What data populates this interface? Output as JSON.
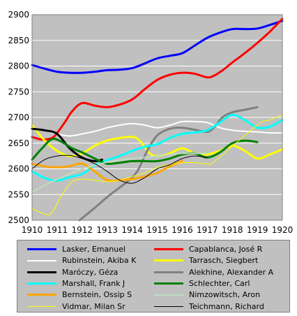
{
  "chart_data": {
    "type": "line",
    "title": "",
    "xlabel": "",
    "ylabel": "",
    "xlim": [
      1910,
      1920
    ],
    "ylim": [
      2500,
      2900
    ],
    "x_ticks": [
      "1910",
      "1911",
      "1912",
      "1913",
      "1914",
      "1915",
      "1916",
      "1917",
      "1918",
      "1919",
      "1920"
    ],
    "y_ticks": [
      "2500",
      "2550",
      "2600",
      "2650",
      "2700",
      "2750",
      "2800",
      "2850",
      "2900"
    ],
    "grid": "horizontal",
    "plot_background": "#c0c0c0",
    "legend_position": "bottom",
    "series": [
      {
        "name": "Lasker, Emanuel",
        "color": "#0000ff",
        "width": 3,
        "points": [
          [
            1910,
            2802
          ],
          [
            1910.5,
            2795
          ],
          [
            1911,
            2789
          ],
          [
            1911.5,
            2787
          ],
          [
            1912,
            2787
          ],
          [
            1912.5,
            2789
          ],
          [
            1913,
            2792
          ],
          [
            1913.5,
            2793
          ],
          [
            1914,
            2796
          ],
          [
            1914.5,
            2805
          ],
          [
            1915,
            2815
          ],
          [
            1915.5,
            2820
          ],
          [
            1916,
            2825
          ],
          [
            1916.5,
            2840
          ],
          [
            1917,
            2855
          ],
          [
            1917.5,
            2865
          ],
          [
            1918,
            2872
          ],
          [
            1918.5,
            2872
          ],
          [
            1919,
            2873
          ],
          [
            1919.5,
            2880
          ],
          [
            1920,
            2888
          ]
        ]
      },
      {
        "name": "Capablanca, José R",
        "color": "#ff0000",
        "width": 3,
        "points": [
          [
            1910,
            2662
          ],
          [
            1910.4,
            2657
          ],
          [
            1910.8,
            2660
          ],
          [
            1911,
            2670
          ],
          [
            1911.3,
            2690
          ],
          [
            1911.6,
            2712
          ],
          [
            1912,
            2728
          ],
          [
            1912.5,
            2723
          ],
          [
            1913,
            2720
          ],
          [
            1913.5,
            2725
          ],
          [
            1914,
            2735
          ],
          [
            1914.5,
            2755
          ],
          [
            1915,
            2773
          ],
          [
            1915.5,
            2783
          ],
          [
            1916,
            2787
          ],
          [
            1916.5,
            2785
          ],
          [
            1917,
            2778
          ],
          [
            1917.3,
            2782
          ],
          [
            1917.7,
            2795
          ],
          [
            1918,
            2807
          ],
          [
            1918.5,
            2825
          ],
          [
            1919,
            2845
          ],
          [
            1919.5,
            2867
          ],
          [
            1920,
            2892
          ]
        ]
      },
      {
        "name": "Rubinstein, Akiba K",
        "color": "#ffffff",
        "width": 2,
        "points": [
          [
            1910,
            2680
          ],
          [
            1910.5,
            2675
          ],
          [
            1911,
            2668
          ],
          [
            1911.5,
            2664
          ],
          [
            1912,
            2668
          ],
          [
            1912.5,
            2673
          ],
          [
            1913,
            2680
          ],
          [
            1913.5,
            2685
          ],
          [
            1914,
            2688
          ],
          [
            1914.5,
            2685
          ],
          [
            1915,
            2680
          ],
          [
            1915.5,
            2685
          ],
          [
            1916,
            2692
          ],
          [
            1916.5,
            2692
          ],
          [
            1917,
            2690
          ],
          [
            1917.5,
            2680
          ],
          [
            1918,
            2675
          ],
          [
            1918.5,
            2673
          ],
          [
            1919,
            2672
          ],
          [
            1919.5,
            2670
          ],
          [
            1920,
            2670
          ]
        ]
      },
      {
        "name": "Tarrasch, Siegbert",
        "color": "#ffff00",
        "width": 3,
        "points": [
          [
            1910,
            2685
          ],
          [
            1910.5,
            2655
          ],
          [
            1911,
            2635
          ],
          [
            1911.5,
            2625
          ],
          [
            1912,
            2630
          ],
          [
            1912.5,
            2645
          ],
          [
            1913,
            2655
          ],
          [
            1913.5,
            2660
          ],
          [
            1914,
            2662
          ],
          [
            1914.3,
            2655
          ],
          [
            1914.7,
            2630
          ],
          [
            1915,
            2625
          ],
          [
            1915.5,
            2630
          ],
          [
            1916,
            2640
          ],
          [
            1916.5,
            2630
          ],
          [
            1917,
            2628
          ],
          [
            1917.5,
            2635
          ],
          [
            1918,
            2645
          ],
          [
            1918.5,
            2635
          ],
          [
            1919,
            2620
          ],
          [
            1919.5,
            2628
          ],
          [
            1920,
            2638
          ]
        ]
      },
      {
        "name": "Maróczy, Géza",
        "color": "#000000",
        "width": 3,
        "points": [
          [
            1910,
            2678
          ],
          [
            1910.5,
            2675
          ],
          [
            1911,
            2668
          ],
          [
            1911.5,
            2640
          ],
          [
            1912,
            2622
          ],
          [
            1912.5,
            2615
          ],
          [
            1912.8,
            2618
          ]
        ]
      },
      {
        "name": "Alekhine, Alexander A",
        "color": "#808080",
        "width": 3,
        "points": [
          [
            1911.9,
            2500
          ],
          [
            1912.2,
            2512
          ],
          [
            1912.6,
            2528
          ],
          [
            1913,
            2545
          ],
          [
            1913.4,
            2560
          ],
          [
            1913.8,
            2575
          ],
          [
            1914.2,
            2595
          ],
          [
            1914.6,
            2635
          ],
          [
            1915,
            2665
          ],
          [
            1915.5,
            2678
          ],
          [
            1916,
            2680
          ],
          [
            1916.5,
            2676
          ],
          [
            1917,
            2672
          ],
          [
            1917.3,
            2682
          ],
          [
            1917.6,
            2700
          ],
          [
            1918,
            2710
          ],
          [
            1918.5,
            2715
          ],
          [
            1919,
            2720
          ]
        ]
      },
      {
        "name": "Marshall, Frank J",
        "color": "#00ffff",
        "width": 3,
        "points": [
          [
            1910,
            2595
          ],
          [
            1910.5,
            2582
          ],
          [
            1911,
            2577
          ],
          [
            1911.5,
            2584
          ],
          [
            1912,
            2590
          ],
          [
            1912.5,
            2607
          ],
          [
            1913,
            2617
          ],
          [
            1913.5,
            2625
          ],
          [
            1914,
            2635
          ],
          [
            1914.5,
            2643
          ],
          [
            1915,
            2648
          ],
          [
            1915.5,
            2660
          ],
          [
            1916,
            2668
          ],
          [
            1916.5,
            2671
          ],
          [
            1917,
            2675
          ],
          [
            1917.5,
            2690
          ],
          [
            1918,
            2705
          ],
          [
            1918.5,
            2695
          ],
          [
            1919,
            2680
          ],
          [
            1919.5,
            2682
          ],
          [
            1920,
            2695
          ]
        ]
      },
      {
        "name": "Schlechter, Carl",
        "color": "#008000",
        "width": 3,
        "points": [
          [
            1910,
            2618
          ],
          [
            1910.4,
            2640
          ],
          [
            1910.8,
            2658
          ],
          [
            1911.2,
            2652
          ],
          [
            1911.6,
            2640
          ],
          [
            1912,
            2632
          ],
          [
            1912.5,
            2620
          ],
          [
            1913,
            2610
          ],
          [
            1913.5,
            2612
          ],
          [
            1914,
            2615
          ],
          [
            1914.5,
            2615
          ],
          [
            1915,
            2615
          ],
          [
            1915.5,
            2620
          ],
          [
            1916,
            2628
          ],
          [
            1916.5,
            2630
          ],
          [
            1917,
            2622
          ],
          [
            1917.5,
            2632
          ],
          [
            1918,
            2650
          ],
          [
            1918.5,
            2655
          ],
          [
            1919,
            2652
          ]
        ]
      },
      {
        "name": "Bernstein, Ossip S",
        "color": "#ffa500",
        "width": 3,
        "points": [
          [
            1910,
            2610
          ],
          [
            1910.5,
            2605
          ],
          [
            1911,
            2603
          ],
          [
            1911.5,
            2605
          ],
          [
            1912,
            2610
          ],
          [
            1912.5,
            2595
          ],
          [
            1913,
            2578
          ],
          [
            1913.5,
            2578
          ],
          [
            1914,
            2580
          ],
          [
            1914.5,
            2585
          ],
          [
            1915,
            2592
          ],
          [
            1915.5,
            2605
          ],
          [
            1916,
            2615
          ]
        ]
      },
      {
        "name": "Nimzowitsch, Aron",
        "color": "#c0dcc0",
        "width": 2,
        "points": [
          [
            1910,
            2555
          ],
          [
            1910.5,
            2568
          ],
          [
            1911,
            2580
          ],
          [
            1911.5,
            2590
          ],
          [
            1912,
            2600
          ],
          [
            1912.5,
            2607
          ],
          [
            1913,
            2613
          ],
          [
            1913.5,
            2617
          ],
          [
            1914,
            2620
          ],
          [
            1914.5,
            2622
          ],
          [
            1915,
            2625
          ],
          [
            1915.5,
            2628
          ],
          [
            1916,
            2630
          ],
          [
            1916.5,
            2630
          ],
          [
            1917,
            2630
          ]
        ]
      },
      {
        "name": "Vidmar, Milan Sr",
        "color": "#ffff00",
        "width": 1,
        "points": [
          [
            1910,
            2523
          ],
          [
            1910.5,
            2512
          ],
          [
            1910.8,
            2515
          ],
          [
            1911.2,
            2550
          ],
          [
            1911.6,
            2575
          ],
          [
            1912,
            2580
          ],
          [
            1912.5,
            2578
          ],
          [
            1913,
            2575
          ],
          [
            1913.5,
            2578
          ],
          [
            1914,
            2585
          ],
          [
            1914.5,
            2592
          ],
          [
            1915,
            2603
          ],
          [
            1915.5,
            2608
          ],
          [
            1916,
            2612
          ],
          [
            1916.5,
            2612
          ],
          [
            1917,
            2610
          ],
          [
            1917.3,
            2615
          ],
          [
            1919,
            2685
          ],
          [
            1919.5,
            2695
          ],
          [
            1920,
            2705
          ]
        ]
      },
      {
        "name": "Teichmann, Richard",
        "color": "#000000",
        "width": 1,
        "points": [
          [
            1910,
            2600
          ],
          [
            1910.5,
            2618
          ],
          [
            1911,
            2625
          ],
          [
            1911.5,
            2626
          ],
          [
            1912,
            2620
          ],
          [
            1912.5,
            2610
          ],
          [
            1913,
            2595
          ],
          [
            1913.5,
            2578
          ],
          [
            1914,
            2572
          ],
          [
            1914.5,
            2583
          ],
          [
            1915,
            2600
          ],
          [
            1915.5,
            2608
          ],
          [
            1916,
            2620
          ],
          [
            1916.5,
            2625
          ],
          [
            1917,
            2622
          ]
        ]
      }
    ]
  }
}
